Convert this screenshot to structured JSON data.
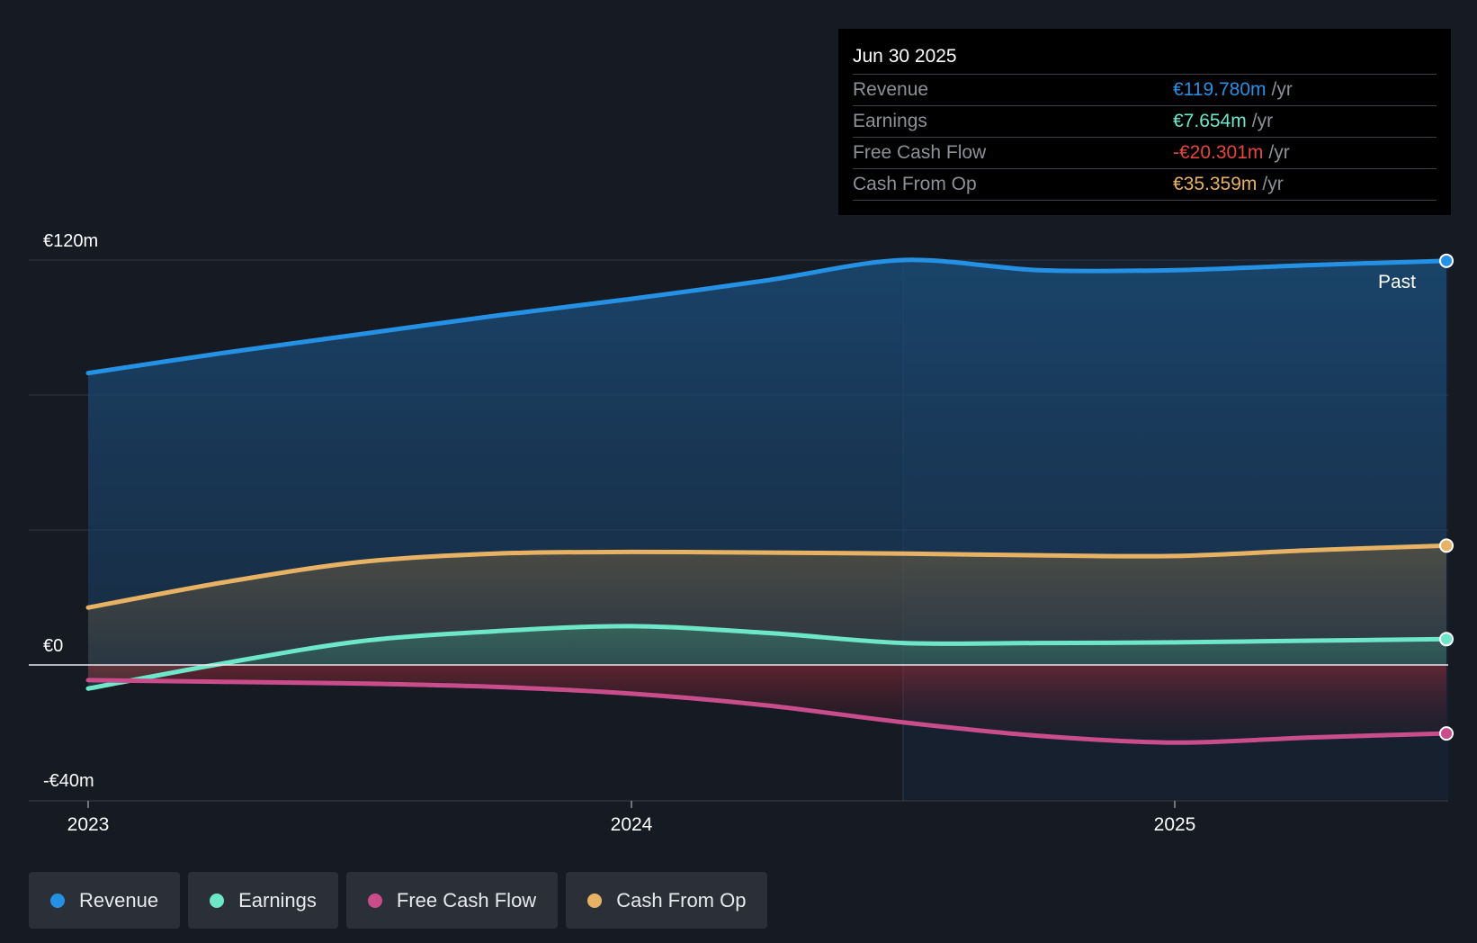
{
  "chart_data": {
    "type": "area",
    "title": "",
    "xlabel": "",
    "ylabel": "",
    "y_unit": "€ millions",
    "ylim": [
      -40,
      120
    ],
    "y_tick_labels": [
      {
        "value": 120,
        "label": "€120m"
      },
      {
        "value": 0,
        "label": "€0"
      },
      {
        "value": -40,
        "label": "-€40m"
      }
    ],
    "x_ticks": [
      {
        "x": 2023.0,
        "label": "2023"
      },
      {
        "x": 2024.0,
        "label": "2024"
      },
      {
        "x": 2025.0,
        "label": "2025"
      }
    ],
    "xlim": [
      2022.9,
      2025.5
    ],
    "past_label": "Past",
    "hover_x": 2024.5,
    "series": [
      {
        "name": "Revenue",
        "color": "#2591e4",
        "x": [
          2023.0,
          2023.25,
          2023.5,
          2023.75,
          2024.0,
          2024.25,
          2024.5,
          2024.75,
          2025.0,
          2025.25,
          2025.5
        ],
        "values": [
          86.5,
          92.5,
          98.0,
          103.5,
          108.5,
          114.0,
          120.0,
          117.0,
          117.0,
          118.5,
          119.78
        ]
      },
      {
        "name": "Earnings",
        "color": "#6de6c9",
        "x": [
          2023.0,
          2023.25,
          2023.5,
          2023.75,
          2024.0,
          2024.25,
          2024.5,
          2024.75,
          2025.0,
          2025.25,
          2025.5
        ],
        "values": [
          -7.0,
          0.5,
          7.0,
          10.0,
          11.5,
          9.5,
          6.5,
          6.5,
          6.7,
          7.2,
          7.654
        ]
      },
      {
        "name": "Free Cash Flow",
        "color": "#c94c8b",
        "x": [
          2023.0,
          2023.25,
          2023.5,
          2023.75,
          2024.0,
          2024.25,
          2024.5,
          2024.75,
          2025.0,
          2025.25,
          2025.5
        ],
        "values": [
          -4.5,
          -5.0,
          -5.5,
          -6.5,
          -8.5,
          -12.0,
          -17.0,
          -21.0,
          -23.0,
          -21.5,
          -20.301
        ]
      },
      {
        "name": "Cash From Op",
        "color": "#e8b264",
        "x": [
          2023.0,
          2023.25,
          2023.5,
          2023.75,
          2024.0,
          2024.25,
          2024.5,
          2024.75,
          2025.0,
          2025.25,
          2025.5
        ],
        "values": [
          17.0,
          24.5,
          30.5,
          33.0,
          33.5,
          33.3,
          33.0,
          32.5,
          32.3,
          34.0,
          35.359
        ]
      }
    ]
  },
  "tooltip": {
    "date": "Jun 30 2025",
    "unit": "/yr",
    "rows": [
      {
        "label": "Revenue",
        "value": "€119.780m",
        "color": "#2591e4"
      },
      {
        "label": "Earnings",
        "value": "€7.654m",
        "color": "#6de6c9"
      },
      {
        "label": "Free Cash Flow",
        "value": "-€20.301m",
        "color": "#e5453f"
      },
      {
        "label": "Cash From Op",
        "value": "€35.359m",
        "color": "#e8b264"
      }
    ]
  },
  "legend": [
    {
      "label": "Revenue",
      "color": "#2591e4"
    },
    {
      "label": "Earnings",
      "color": "#6de6c9"
    },
    {
      "label": "Free Cash Flow",
      "color": "#c94c8b"
    },
    {
      "label": "Cash From Op",
      "color": "#e8b264"
    }
  ]
}
